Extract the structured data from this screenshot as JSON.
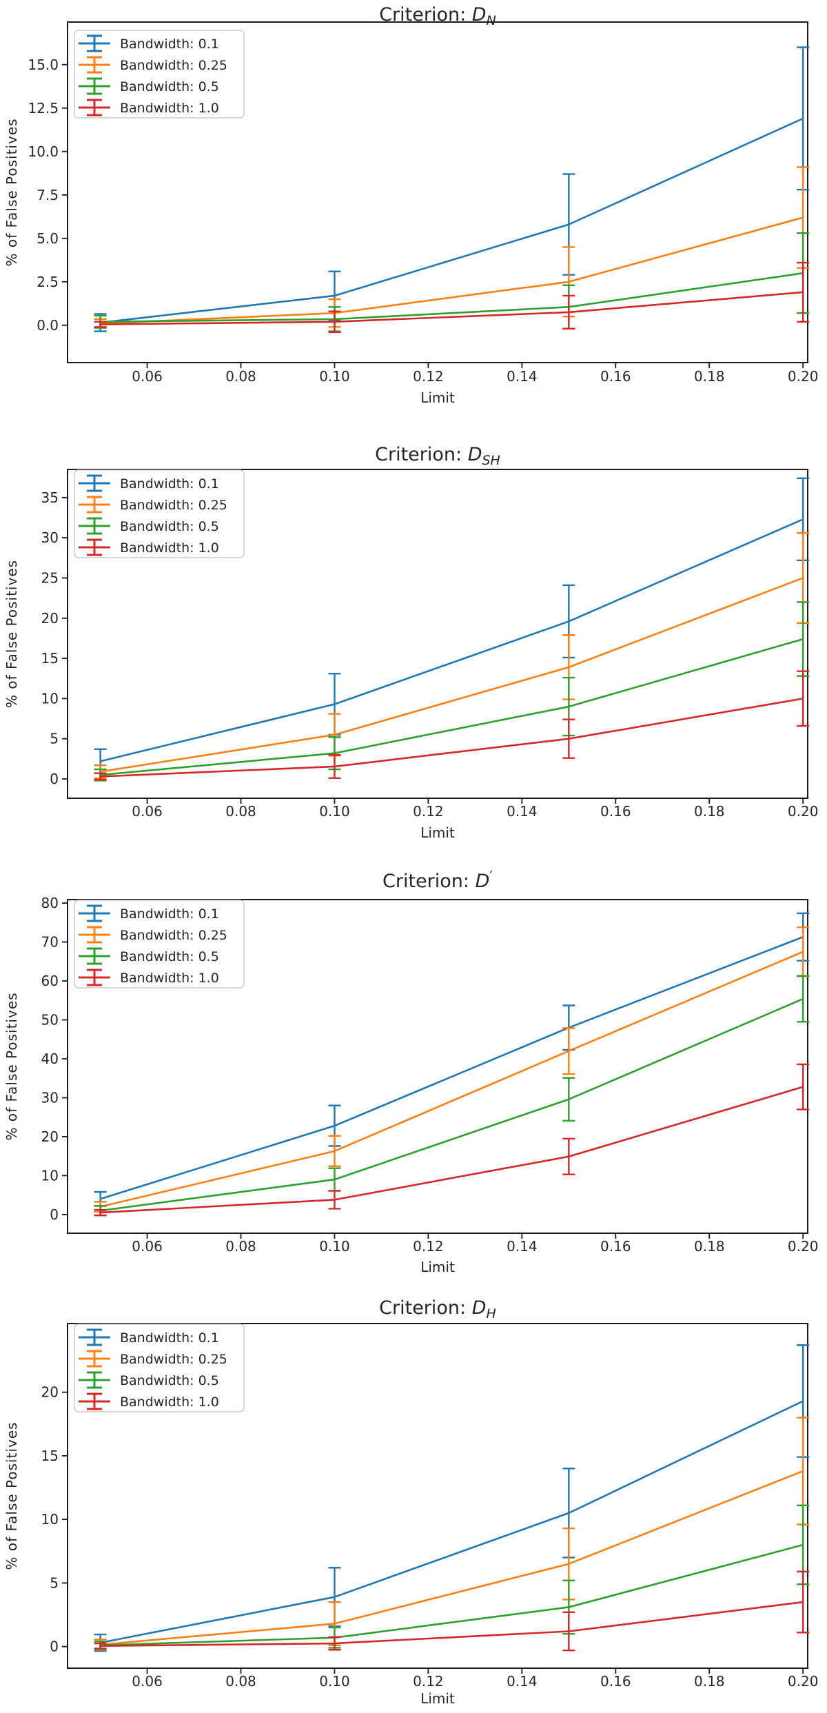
{
  "figure": {
    "background": "#ffffff",
    "text_color": "#262626",
    "spine_color": "#1a1a1a",
    "xlabel": "Limit",
    "ylabel": "% of False Positives"
  },
  "legend": {
    "labels": [
      "Bandwidth: 0.1",
      "Bandwidth: 0.25",
      "Bandwidth: 0.5",
      "Bandwidth: 1.0"
    ],
    "position": "upper left",
    "marker": "errorbar"
  },
  "chart_data": [
    {
      "type": "line",
      "title": {
        "prefix": "Criterion: ",
        "symbol": "D",
        "subscript": "N",
        "prime": false
      },
      "xlabel": "Limit",
      "ylabel": "% of False Positives",
      "x": [
        0.05,
        0.1,
        0.15,
        0.2
      ],
      "xlim": [
        0.043,
        0.201
      ],
      "ylim": [
        -2.15,
        17.45
      ],
      "x_ticks": [
        0.06,
        0.08,
        0.1,
        0.12,
        0.14,
        0.16,
        0.18,
        0.2
      ],
      "x_tick_labels": [
        "0.06",
        "0.08",
        "0.10",
        "0.12",
        "0.14",
        "0.16",
        "0.18",
        "0.20"
      ],
      "y_ticks": [
        0.0,
        2.5,
        5.0,
        7.5,
        10.0,
        12.5,
        15.0
      ],
      "y_tick_labels": [
        "0.0",
        "2.5",
        "5.0",
        "7.5",
        "10.0",
        "12.5",
        "15.0"
      ],
      "grid": false,
      "legend_position": "upper left",
      "series": [
        {
          "name": "Bandwidth: 0.1",
          "color": "#1f77b4",
          "y": [
            0.15,
            1.7,
            5.8,
            11.9
          ],
          "yerr": [
            0.5,
            1.4,
            2.9,
            4.1
          ]
        },
        {
          "name": "Bandwidth: 0.25",
          "color": "#ff7f0e",
          "y": [
            0.1,
            0.7,
            2.5,
            6.2
          ],
          "yerr": [
            0.25,
            0.8,
            2.0,
            2.9
          ]
        },
        {
          "name": "Bandwidth: 0.5",
          "color": "#2ca02c",
          "y": [
            0.2,
            0.35,
            1.05,
            3.0
          ],
          "yerr": [
            0.35,
            0.7,
            1.25,
            2.3
          ]
        },
        {
          "name": "Bandwidth: 1.0",
          "color": "#d62728",
          "y": [
            0.05,
            0.2,
            0.75,
            1.9
          ],
          "yerr": [
            0.15,
            0.6,
            0.95,
            1.7
          ]
        }
      ]
    },
    {
      "type": "line",
      "title": {
        "prefix": "Criterion: ",
        "symbol": "D",
        "subscript": "SH",
        "prime": false
      },
      "xlabel": "Limit",
      "ylabel": "% of False Positives",
      "x": [
        0.05,
        0.1,
        0.15,
        0.2
      ],
      "xlim": [
        0.043,
        0.201
      ],
      "ylim": [
        -2.4,
        38.5
      ],
      "x_ticks": [
        0.06,
        0.08,
        0.1,
        0.12,
        0.14,
        0.16,
        0.18,
        0.2
      ],
      "x_tick_labels": [
        "0.06",
        "0.08",
        "0.10",
        "0.12",
        "0.14",
        "0.16",
        "0.18",
        "0.20"
      ],
      "y_ticks": [
        0,
        5,
        10,
        15,
        20,
        25,
        30,
        35
      ],
      "y_tick_labels": [
        "0",
        "5",
        "10",
        "15",
        "20",
        "25",
        "30",
        "35"
      ],
      "grid": false,
      "legend_position": "upper left",
      "series": [
        {
          "name": "Bandwidth: 0.1",
          "color": "#1f77b4",
          "y": [
            2.2,
            9.3,
            19.6,
            32.3
          ],
          "yerr": [
            1.5,
            3.8,
            4.5,
            5.1
          ]
        },
        {
          "name": "Bandwidth: 0.25",
          "color": "#ff7f0e",
          "y": [
            0.9,
            5.5,
            13.9,
            25.0
          ],
          "yerr": [
            0.8,
            2.6,
            4.0,
            5.6
          ]
        },
        {
          "name": "Bandwidth: 0.5",
          "color": "#2ca02c",
          "y": [
            0.5,
            3.2,
            9.0,
            17.4
          ],
          "yerr": [
            0.7,
            2.0,
            3.6,
            4.6
          ]
        },
        {
          "name": "Bandwidth: 1.0",
          "color": "#d62728",
          "y": [
            0.3,
            1.55,
            5.0,
            10.0
          ],
          "yerr": [
            0.4,
            1.45,
            2.4,
            3.4
          ]
        }
      ]
    },
    {
      "type": "line",
      "title": {
        "prefix": "Criterion: ",
        "symbol": "D",
        "subscript": "",
        "prime": true
      },
      "xlabel": "Limit",
      "ylabel": "% of False Positives",
      "x": [
        0.05,
        0.1,
        0.15,
        0.2
      ],
      "xlim": [
        0.043,
        0.201
      ],
      "ylim": [
        -4.8,
        80.9
      ],
      "x_ticks": [
        0.06,
        0.08,
        0.1,
        0.12,
        0.14,
        0.16,
        0.18,
        0.2
      ],
      "x_tick_labels": [
        "0.06",
        "0.08",
        "0.10",
        "0.12",
        "0.14",
        "0.16",
        "0.18",
        "0.20"
      ],
      "y_ticks": [
        0,
        10,
        20,
        30,
        40,
        50,
        60,
        70,
        80
      ],
      "y_tick_labels": [
        "0",
        "10",
        "20",
        "30",
        "40",
        "50",
        "60",
        "70",
        "80"
      ],
      "grid": false,
      "legend_position": "upper left",
      "series": [
        {
          "name": "Bandwidth: 0.1",
          "color": "#1f77b4",
          "y": [
            4.0,
            22.8,
            48.0,
            71.3
          ],
          "yerr": [
            1.8,
            5.2,
            5.7,
            6.1
          ]
        },
        {
          "name": "Bandwidth: 0.25",
          "color": "#ff7f0e",
          "y": [
            2.0,
            16.3,
            42.0,
            67.5
          ],
          "yerr": [
            1.3,
            3.9,
            5.9,
            6.3
          ]
        },
        {
          "name": "Bandwidth: 0.5",
          "color": "#2ca02c",
          "y": [
            1.0,
            9.0,
            29.6,
            55.4
          ],
          "yerr": [
            1.2,
            2.9,
            5.5,
            5.9
          ]
        },
        {
          "name": "Bandwidth: 1.0",
          "color": "#d62728",
          "y": [
            0.5,
            3.8,
            14.9,
            32.8
          ],
          "yerr": [
            0.7,
            2.3,
            4.6,
            5.8
          ]
        }
      ]
    },
    {
      "type": "line",
      "title": {
        "prefix": "Criterion: ",
        "symbol": "D",
        "subscript": "H",
        "prime": false
      },
      "xlabel": "Limit",
      "ylabel": "% of False Positives",
      "x": [
        0.05,
        0.1,
        0.15,
        0.2
      ],
      "xlim": [
        0.043,
        0.201
      ],
      "ylim": [
        -1.7,
        25.4
      ],
      "x_ticks": [
        0.06,
        0.08,
        0.1,
        0.12,
        0.14,
        0.16,
        0.18,
        0.2
      ],
      "x_tick_labels": [
        "0.06",
        "0.08",
        "0.10",
        "0.12",
        "0.14",
        "0.16",
        "0.18",
        "0.20"
      ],
      "y_ticks": [
        0,
        5,
        10,
        15,
        20
      ],
      "y_tick_labels": [
        "0",
        "5",
        "10",
        "15",
        "20"
      ],
      "grid": false,
      "legend_position": "upper left",
      "series": [
        {
          "name": "Bandwidth: 0.1",
          "color": "#1f77b4",
          "y": [
            0.3,
            3.9,
            10.5,
            19.3
          ],
          "yerr": [
            0.65,
            2.3,
            3.5,
            4.4
          ]
        },
        {
          "name": "Bandwidth: 0.25",
          "color": "#ff7f0e",
          "y": [
            0.15,
            1.8,
            6.5,
            13.8
          ],
          "yerr": [
            0.4,
            1.7,
            2.8,
            4.2
          ]
        },
        {
          "name": "Bandwidth: 0.5",
          "color": "#2ca02c",
          "y": [
            0.1,
            0.7,
            3.1,
            8.0
          ],
          "yerr": [
            0.3,
            0.8,
            2.1,
            3.1
          ]
        },
        {
          "name": "Bandwidth: 1.0",
          "color": "#d62728",
          "y": [
            0.05,
            0.25,
            1.2,
            3.5
          ],
          "yerr": [
            0.2,
            0.5,
            1.5,
            2.4
          ]
        }
      ]
    }
  ]
}
